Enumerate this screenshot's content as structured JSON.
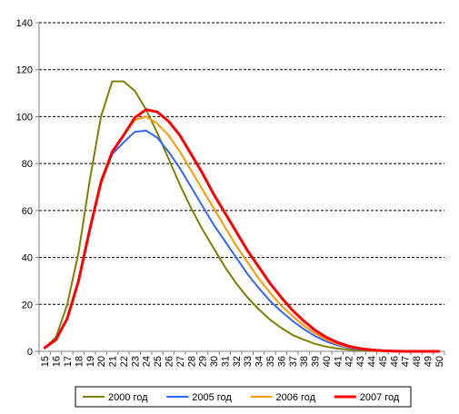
{
  "chart_data": {
    "type": "line",
    "title": "",
    "xlabel": "",
    "ylabel": "",
    "ylim": [
      0,
      140
    ],
    "yticks": [
      0,
      20,
      40,
      60,
      80,
      100,
      120,
      140
    ],
    "grid": "horizontal dashed",
    "legend_position": "bottom",
    "x": [
      15,
      16,
      17,
      18,
      19,
      20,
      21,
      22,
      23,
      24,
      25,
      26,
      27,
      28,
      29,
      30,
      31,
      32,
      33,
      34,
      35,
      36,
      37,
      38,
      39,
      40,
      41,
      42,
      43,
      44,
      45,
      46,
      47,
      48,
      49,
      50
    ],
    "series": [
      {
        "name": "2000 год",
        "color": "#808000",
        "width": 2,
        "values": [
          1.5,
          6,
          20,
          42,
          73,
          100,
          115,
          115,
          111,
          103,
          93,
          82,
          71,
          61,
          52,
          44,
          36,
          29,
          23,
          18,
          13.5,
          10,
          7,
          5,
          3.2,
          2,
          1.2,
          0.7,
          0.4,
          0.2,
          0.1,
          0.05,
          0,
          0,
          0,
          0
        ]
      },
      {
        "name": "2005 год",
        "color": "#3366FF",
        "width": 2,
        "values": [
          1.5,
          5,
          14,
          30,
          51,
          72,
          84,
          89,
          93.5,
          94,
          91,
          85,
          78,
          70,
          62,
          54,
          47,
          40,
          33,
          27,
          21.5,
          17,
          13,
          9.5,
          6.5,
          4.2,
          2.6,
          1.5,
          0.8,
          0.4,
          0.2,
          0.1,
          0,
          0,
          0,
          0
        ]
      },
      {
        "name": "2006 год",
        "color": "#FF9900",
        "width": 2,
        "values": [
          1.5,
          5,
          14,
          30,
          52,
          73,
          85,
          92,
          98.5,
          100,
          97,
          92,
          85,
          77,
          69,
          61,
          53,
          45,
          38,
          31,
          25,
          19.5,
          15,
          11,
          7.6,
          5,
          3.1,
          1.8,
          1,
          0.5,
          0.25,
          0.1,
          0,
          0,
          0,
          0
        ]
      },
      {
        "name": "2007 год",
        "color": "#FF0000",
        "width": 3,
        "values": [
          1.5,
          5,
          14,
          30,
          52,
          72,
          85,
          92,
          99.5,
          103,
          102,
          98,
          92,
          84,
          76,
          67,
          59,
          51,
          43,
          36,
          29,
          23,
          17.5,
          13,
          9,
          6,
          3.8,
          2.2,
          1.2,
          0.6,
          0.3,
          0.1,
          0,
          0,
          0,
          0
        ]
      }
    ]
  }
}
